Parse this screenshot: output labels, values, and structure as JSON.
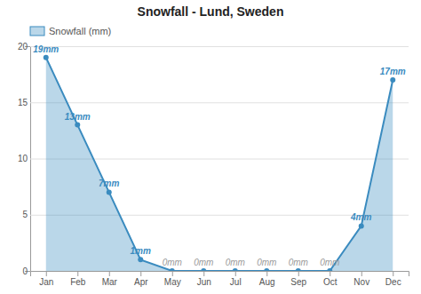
{
  "chart_data": {
    "type": "area",
    "title": "Snowfall - Lund, Sweden",
    "categories": [
      "Jan",
      "Feb",
      "Mar",
      "Apr",
      "May",
      "Jun",
      "Jul",
      "Aug",
      "Sep",
      "Oct",
      "Nov",
      "Dec"
    ],
    "series": [
      {
        "name": "Snowfall (mm)",
        "color": "#3a8bbf",
        "marker": "circle",
        "values": [
          19,
          13,
          7,
          1,
          0,
          0,
          0,
          0,
          0,
          0,
          4,
          17
        ],
        "value_labels": [
          "19mm",
          "13mm",
          "7mm",
          "1mm",
          "0mm",
          "0mm",
          "0mm",
          "0mm",
          "0mm",
          "0mm",
          "4mm",
          "17mm"
        ]
      }
    ],
    "ylim": [
      0,
      20
    ],
    "yticks": [
      0,
      5,
      10,
      15,
      20
    ],
    "grid": true,
    "legend": "upper left",
    "data_labels": true
  }
}
